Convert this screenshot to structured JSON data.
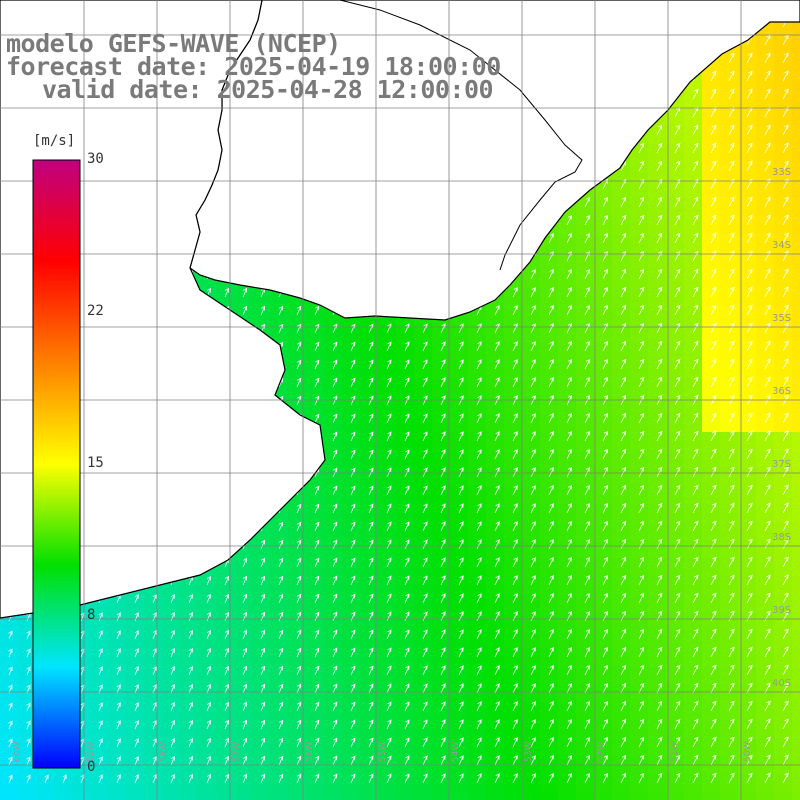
{
  "title": {
    "line1": "modelo GEFS-WAVE (NCEP)",
    "line2": "forecast date: 2025-04-19 18:00:00",
    "line3": "valid date: 2025-04-28 12:00:00"
  },
  "colorbar": {
    "unit": "[m/s]",
    "ticks": [
      "30",
      "22",
      "15",
      "8",
      "0"
    ],
    "min": 0,
    "max": 30,
    "colors": [
      "#0000ff",
      "#00e5ff",
      "#00e000",
      "#ffff00",
      "#ff8000",
      "#ff0000",
      "#c00080"
    ]
  },
  "grid": {
    "lat_labels": [
      "33S",
      "34S",
      "35S",
      "36S",
      "37S",
      "38S",
      "39S",
      "40S"
    ],
    "lon_labels": [
      "60W",
      "59W",
      "58W",
      "57W",
      "56W",
      "55W",
      "54W",
      "53W",
      "52W",
      "51W",
      "50W"
    ]
  },
  "colors": {
    "land": "#ffffff",
    "coast": "#000000",
    "grid": "#808080",
    "arrows": "#ffffff",
    "title": "#7a7a7a"
  }
}
